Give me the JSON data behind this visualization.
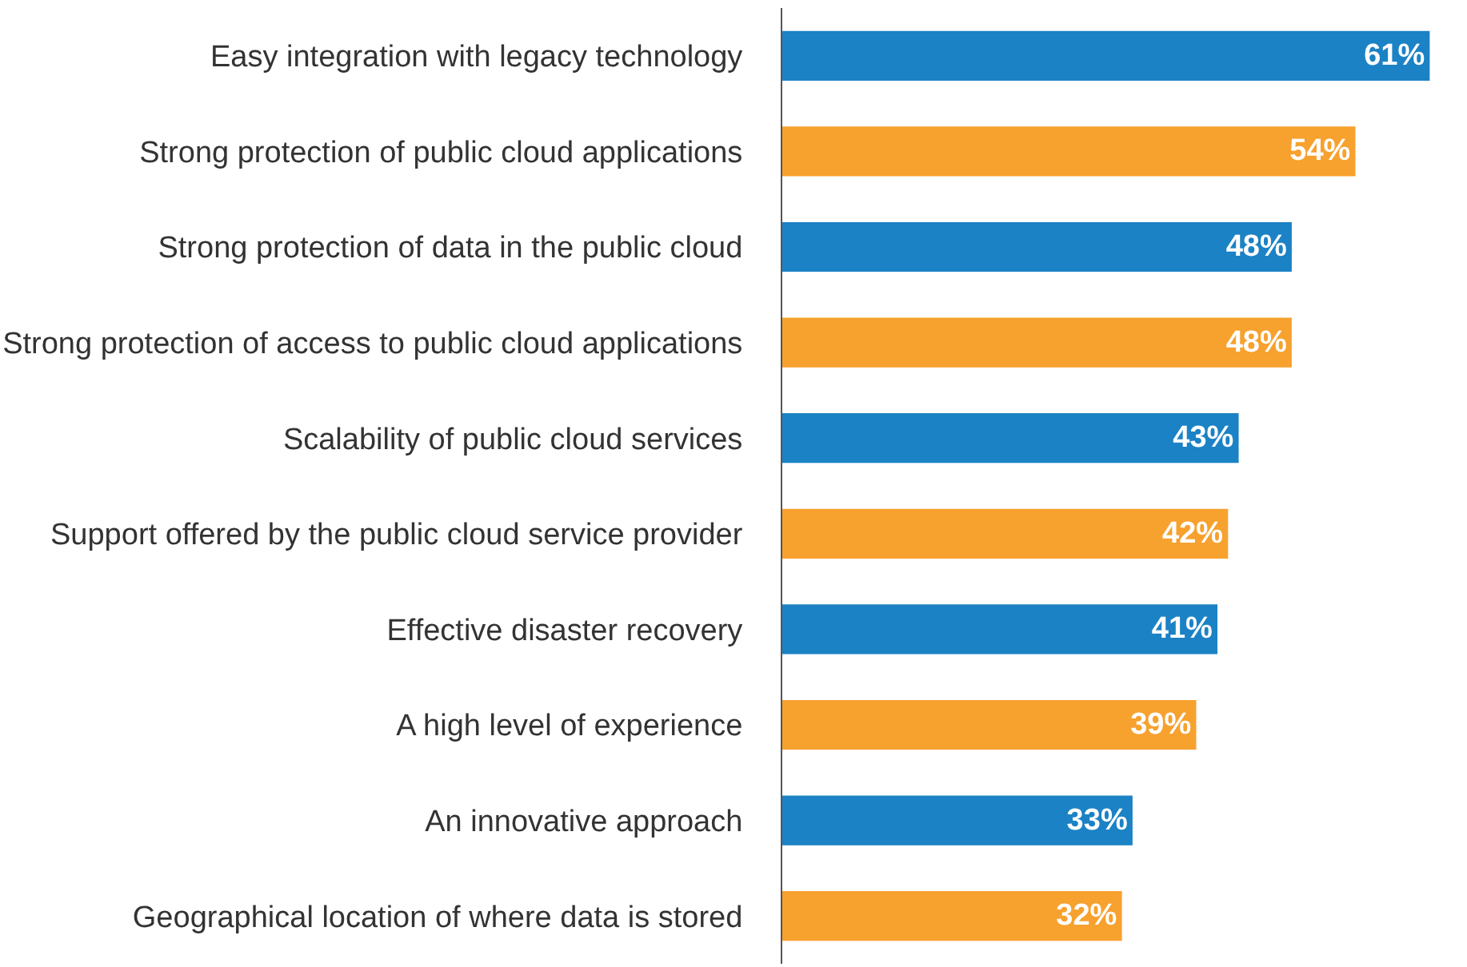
{
  "chart_data": {
    "type": "bar",
    "orientation": "horizontal",
    "categories": [
      "Easy integration with legacy technology",
      "Strong protection of public cloud applications",
      "Strong protection of data in the public cloud",
      "Strong protection of access to public cloud applications",
      "Scalability of public cloud services",
      "Support offered by the public cloud service provider",
      "Effective disaster recovery",
      "A high level of experience",
      "An innovative approach",
      "Geographical location of where data is stored"
    ],
    "values": [
      61,
      54,
      48,
      48,
      43,
      42,
      41,
      39,
      33,
      32
    ],
    "value_labels": [
      "61%",
      "54%",
      "48%",
      "48%",
      "43%",
      "42%",
      "41%",
      "39%",
      "33%",
      "32%"
    ],
    "colors": [
      "#1b82c5",
      "#f7a12e",
      "#1b82c5",
      "#f7a12e",
      "#1b82c5",
      "#f7a12e",
      "#1b82c5",
      "#f7a12e",
      "#1b82c5",
      "#f7a12e"
    ],
    "legend": false
  }
}
